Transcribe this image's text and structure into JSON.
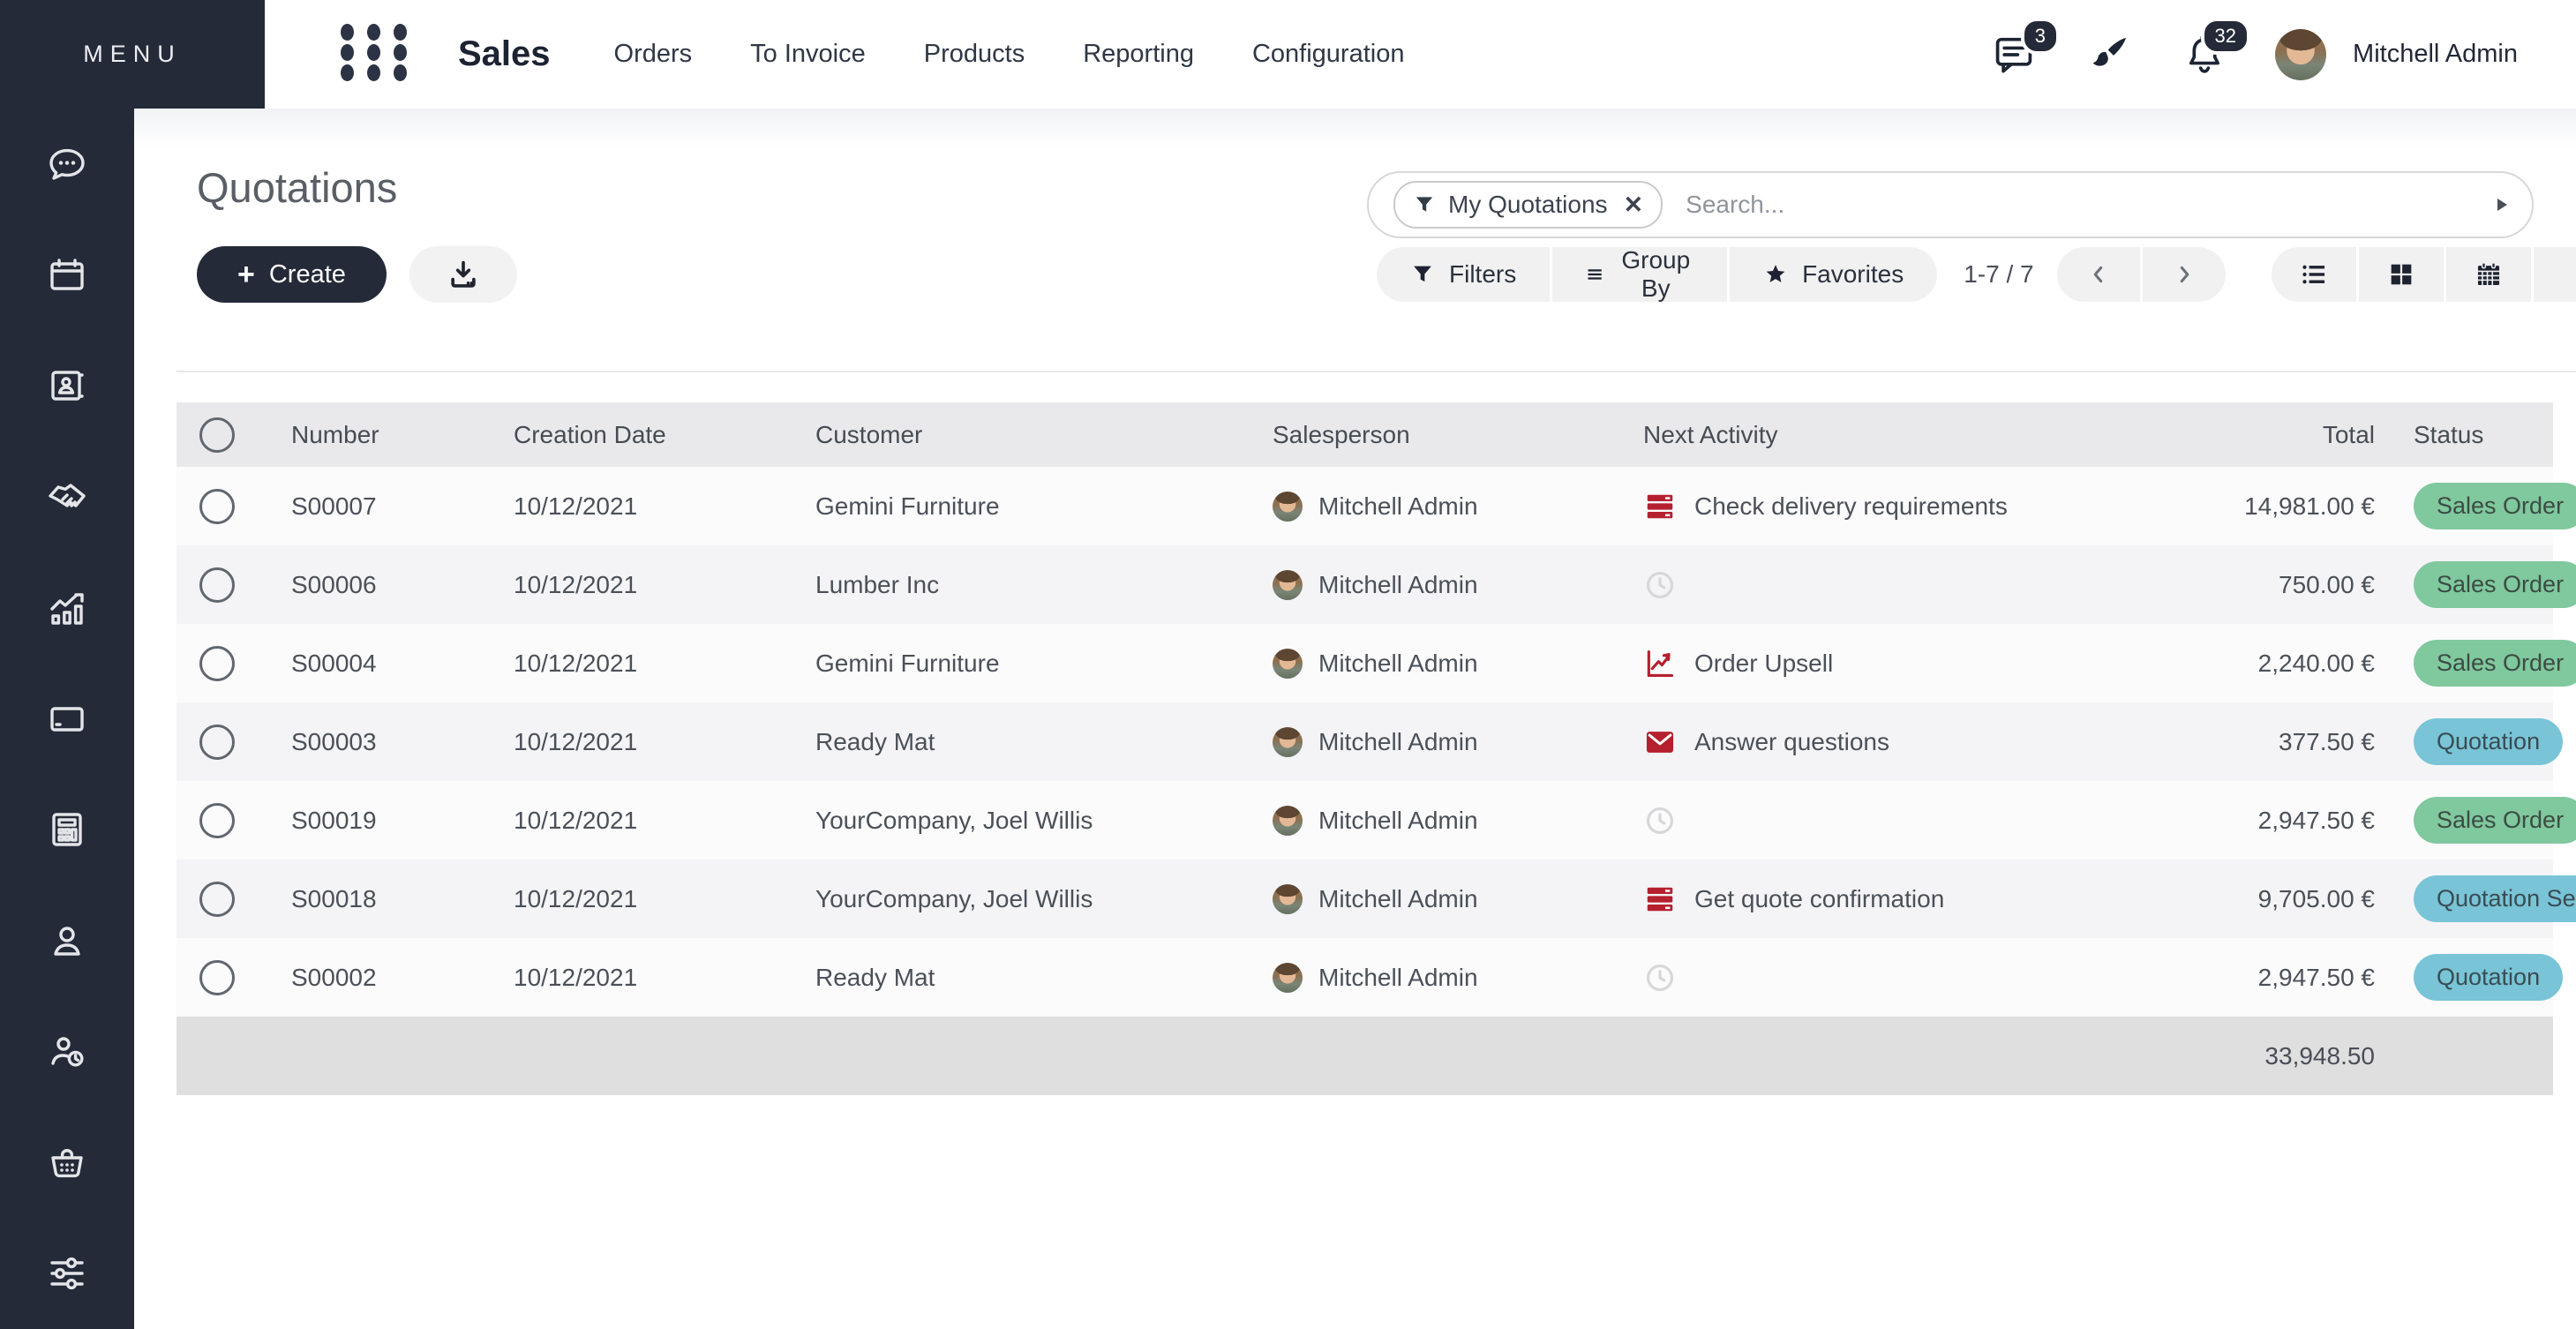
{
  "colors": {
    "accent_dark": "#242a38",
    "status_green_bg": "#80c89e",
    "status_blue_bg": "#79c4d7",
    "activity_red": "#b5202f",
    "clock_gray": "#d7d7d9"
  },
  "navbar": {
    "menu_label": "MENU",
    "app_name": "Sales",
    "items": [
      "Orders",
      "To Invoice",
      "Products",
      "Reporting",
      "Configuration"
    ],
    "messages_badge": "3",
    "notifications_badge": "32",
    "user_name": "Mitchell Admin"
  },
  "sidebar": {
    "icon_names": [
      "chat-icon",
      "calendar-icon",
      "contacts-icon",
      "handshake-icon",
      "sales-chart-icon",
      "credit-card-icon",
      "calculator-icon",
      "user-icon",
      "user-clock-icon",
      "basket-icon",
      "sliders-icon"
    ]
  },
  "control_panel": {
    "title": "Quotations",
    "create_label": "Create",
    "plus_glyph": "+",
    "facet_label": "My Quotations",
    "facet_close": "✕",
    "search_placeholder": "Search...",
    "filters_label": "Filters",
    "group_by_label": "Group By",
    "favorites_label": "Favorites",
    "pager": "1-7 / 7"
  },
  "table": {
    "headers": {
      "number": "Number",
      "creation_date": "Creation Date",
      "customer": "Customer",
      "salesperson": "Salesperson",
      "next_activity": "Next Activity",
      "total": "Total",
      "status": "Status"
    },
    "rows": [
      {
        "number": "S00007",
        "creation_date": "10/12/2021",
        "customer": "Gemini Furniture",
        "salesperson": "Mitchell Admin",
        "activity": {
          "type": "list",
          "label": "Check delivery requirements"
        },
        "total": "14,981.00 €",
        "status": {
          "label": "Sales Order",
          "color": "green"
        }
      },
      {
        "number": "S00006",
        "creation_date": "10/12/2021",
        "customer": "Lumber Inc",
        "salesperson": "Mitchell Admin",
        "activity": {
          "type": "clock",
          "label": ""
        },
        "total": "750.00 €",
        "status": {
          "label": "Sales Order",
          "color": "green"
        }
      },
      {
        "number": "S00004",
        "creation_date": "10/12/2021",
        "customer": "Gemini Furniture",
        "salesperson": "Mitchell Admin",
        "activity": {
          "type": "chart",
          "label": "Order Upsell"
        },
        "total": "2,240.00 €",
        "status": {
          "label": "Sales Order",
          "color": "green"
        }
      },
      {
        "number": "S00003",
        "creation_date": "10/12/2021",
        "customer": "Ready Mat",
        "salesperson": "Mitchell Admin",
        "activity": {
          "type": "envelope",
          "label": "Answer questions"
        },
        "total": "377.50 €",
        "status": {
          "label": "Quotation",
          "color": "blue"
        }
      },
      {
        "number": "S00019",
        "creation_date": "10/12/2021",
        "customer": "YourCompany, Joel Willis",
        "salesperson": "Mitchell Admin",
        "activity": {
          "type": "clock",
          "label": ""
        },
        "total": "2,947.50 €",
        "status": {
          "label": "Sales Order",
          "color": "green"
        }
      },
      {
        "number": "S00018",
        "creation_date": "10/12/2021",
        "customer": "YourCompany, Joel Willis",
        "salesperson": "Mitchell Admin",
        "activity": {
          "type": "list",
          "label": "Get quote confirmation"
        },
        "total": "9,705.00 €",
        "status": {
          "label": "Quotation Sent",
          "color": "blue"
        }
      },
      {
        "number": "S00002",
        "creation_date": "10/12/2021",
        "customer": "Ready Mat",
        "salesperson": "Mitchell Admin",
        "activity": {
          "type": "clock",
          "label": ""
        },
        "total": "2,947.50 €",
        "status": {
          "label": "Quotation",
          "color": "blue"
        }
      }
    ],
    "footer_total": "33,948.50"
  }
}
